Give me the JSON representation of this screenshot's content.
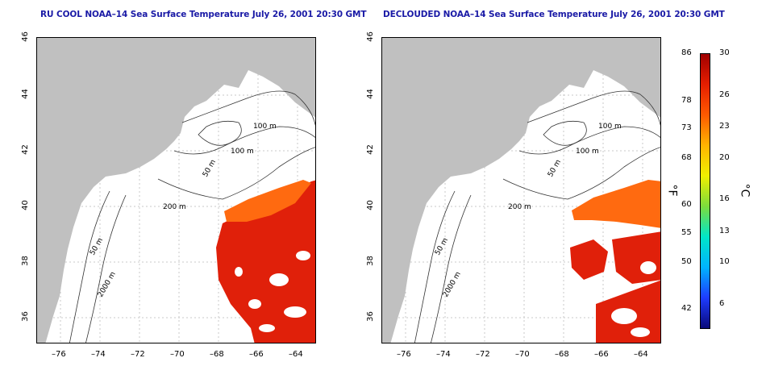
{
  "panels": [
    {
      "title": "RU COOL NOAA–14 Sea Surface Temperature July 26, 2001 20:30 GMT",
      "contour_labels": [
        "100 m",
        "100 m",
        "50 m",
        "200 m",
        "50 m",
        "2000 m"
      ]
    },
    {
      "title": "DECLOUDED NOAA–14 Sea Surface Temperature July 26, 2001 20:30 GMT",
      "contour_labels": [
        "100 m",
        "100 m",
        "50 m",
        "200 m",
        "50 m",
        "2000 m"
      ]
    }
  ],
  "x_ticks": [
    "–76",
    "–74",
    "–72",
    "–70",
    "–68",
    "–66",
    "–64"
  ],
  "y_ticks": [
    "46",
    "44",
    "42",
    "40",
    "38",
    "36"
  ],
  "colorbar": {
    "fahrenheit_ticks": [
      "86",
      "78",
      "73",
      "68",
      "60",
      "55",
      "50",
      "42"
    ],
    "celsius_ticks": [
      "30",
      "26",
      "23",
      "20",
      "16",
      "13",
      "10",
      "6"
    ],
    "fahrenheit_unit": "°F",
    "celsius_unit": "°C",
    "colors": [
      "#0a0a7a",
      "#1e3cff",
      "#00b4ff",
      "#00e6c8",
      "#7ddc3c",
      "#f0f000",
      "#ffb400",
      "#ff5a00",
      "#e61e00",
      "#a00000"
    ]
  },
  "colors": {
    "land": "#c0c0c0",
    "title": "#1a1aa6",
    "sst_warm": "#e0200a",
    "sst_hot": "#ff6a10"
  }
}
